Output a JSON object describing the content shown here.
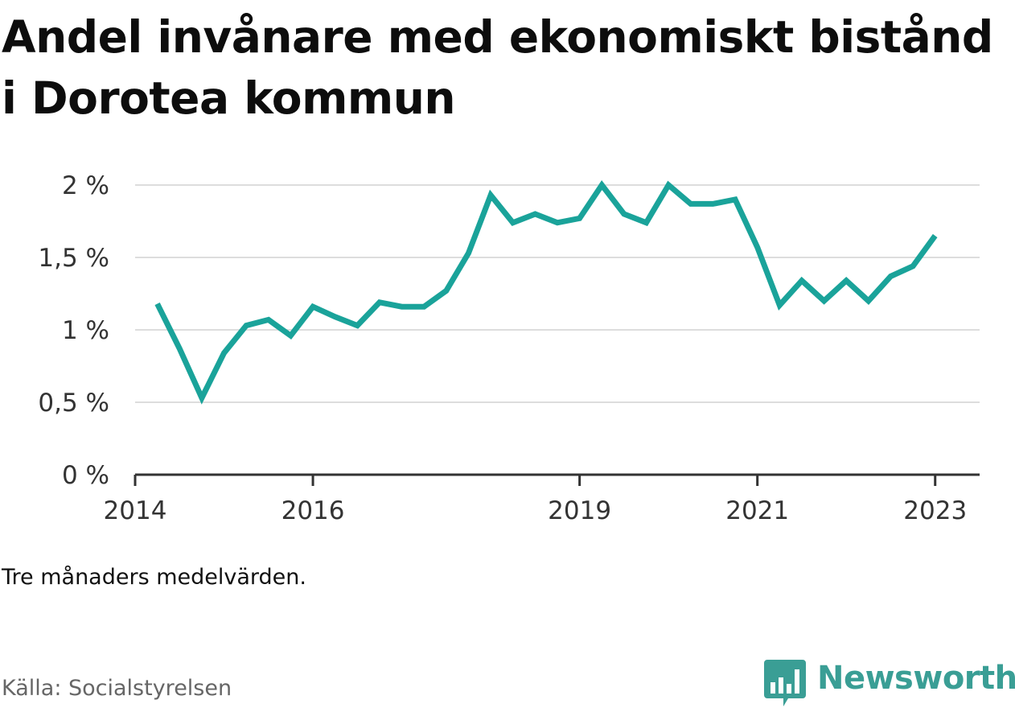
{
  "title": "Andel invånare med ekonomiskt bistånd i Dorotea kommun",
  "note": "Tre månaders medelvärden.",
  "source": "Källa: Socialstyrelsen",
  "brand": {
    "name": "Newsworthy",
    "icon": "newsworthy-logo-icon",
    "color": "#3a9e95"
  },
  "chart_data": {
    "type": "line",
    "x_ticks": [
      "2014",
      "2016",
      "2019",
      "2021",
      "2023"
    ],
    "y_ticks": [
      "0 %",
      "0,5 %",
      "1 %",
      "1,5 %",
      "2 %"
    ],
    "ylim": [
      0,
      2
    ],
    "xlim": [
      "2014-01",
      "2023-07"
    ],
    "grid": true,
    "series": [
      {
        "color": "#1aa39a",
        "points": [
          [
            "2014-04",
            1.18
          ],
          [
            "2014-07",
            0.87
          ],
          [
            "2014-10",
            0.53
          ],
          [
            "2015-01",
            0.84
          ],
          [
            "2015-04",
            1.03
          ],
          [
            "2015-07",
            1.07
          ],
          [
            "2015-10",
            0.96
          ],
          [
            "2016-01",
            1.16
          ],
          [
            "2016-04",
            1.09
          ],
          [
            "2016-07",
            1.03
          ],
          [
            "2016-10",
            1.19
          ],
          [
            "2017-01",
            1.16
          ],
          [
            "2017-04",
            1.16
          ],
          [
            "2017-07",
            1.27
          ],
          [
            "2017-10",
            1.53
          ],
          [
            "2018-01",
            1.93
          ],
          [
            "2018-04",
            1.74
          ],
          [
            "2018-07",
            1.8
          ],
          [
            "2018-10",
            1.74
          ],
          [
            "2019-01",
            1.77
          ],
          [
            "2019-04",
            2.0
          ],
          [
            "2019-07",
            1.8
          ],
          [
            "2019-10",
            1.74
          ],
          [
            "2020-01",
            2.0
          ],
          [
            "2020-04",
            1.87
          ],
          [
            "2020-07",
            1.87
          ],
          [
            "2020-10",
            1.9
          ],
          [
            "2021-01",
            1.57
          ],
          [
            "2021-04",
            1.17
          ],
          [
            "2021-07",
            1.34
          ],
          [
            "2021-10",
            1.2
          ],
          [
            "2022-01",
            1.34
          ],
          [
            "2022-04",
            1.2
          ],
          [
            "2022-07",
            1.37
          ],
          [
            "2022-10",
            1.44
          ],
          [
            "2023-01",
            1.65
          ]
        ]
      }
    ]
  }
}
